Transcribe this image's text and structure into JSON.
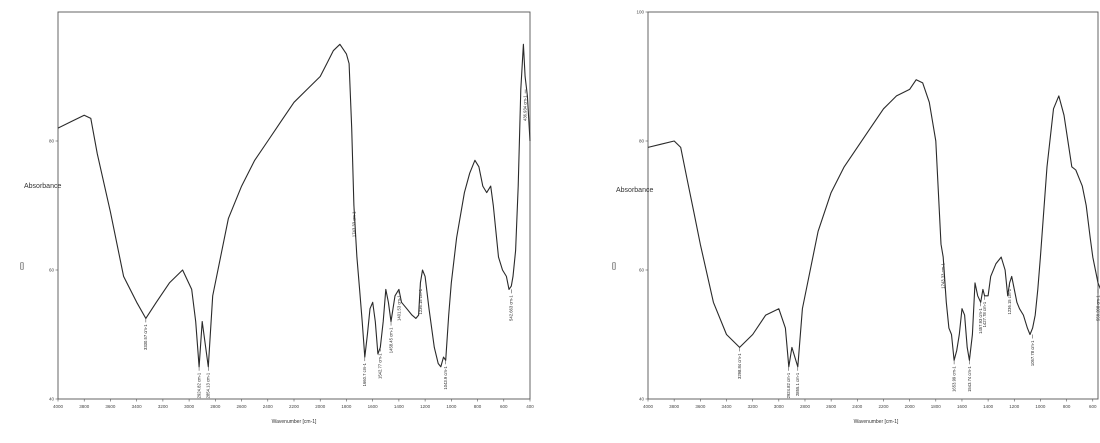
{
  "chart_data": [
    {
      "type": "line",
      "xlabel": "Wavenumber [cm-1]",
      "ylabel": "Absorbance",
      "ylabel_unit": "[]",
      "xlim": [
        4000,
        400
      ],
      "ylim": [
        40,
        100
      ],
      "x_ticks": [
        "4000",
        "3800",
        "3600",
        "3400",
        "3200",
        "3000",
        "2800",
        "2600",
        "2400",
        "2200",
        "2000",
        "1800",
        "1600",
        "1400",
        "1200",
        "1000",
        "800",
        "600",
        "400"
      ],
      "y_ticks": [
        {
          "value": 40,
          "label": "40"
        },
        {
          "value": 60,
          "label": "60"
        },
        {
          "value": 80,
          "label": "80"
        }
      ],
      "series": [
        {
          "x": [
            4000,
            3900,
            3800,
            3750,
            3700,
            3600,
            3500,
            3400,
            3330,
            3250,
            3150,
            3050,
            2980,
            2950,
            2924,
            2900,
            2854,
            2820,
            2700,
            2600,
            2500,
            2400,
            2300,
            2200,
            2100,
            2000,
            1950,
            1900,
            1850,
            1800,
            1780,
            1760,
            1743,
            1720,
            1700,
            1680,
            1660,
            1640,
            1620,
            1600,
            1580,
            1560,
            1542,
            1520,
            1500,
            1480,
            1460,
            1430,
            1400,
            1380,
            1340,
            1300,
            1270,
            1250,
            1236,
            1220,
            1200,
            1170,
            1130,
            1100,
            1080,
            1060,
            1043,
            1020,
            1000,
            960,
            900,
            860,
            820,
            790,
            760,
            730,
            700,
            680,
            660,
            640,
            610,
            580,
            560,
            543,
            530,
            510,
            490,
            470,
            450,
            437,
            420,
            400
          ],
          "y": [
            82,
            83,
            84,
            83.5,
            78,
            69,
            59,
            55,
            52.5,
            55,
            58,
            60,
            57,
            52,
            45,
            52,
            45,
            56,
            68,
            73,
            77,
            80,
            83,
            86,
            88,
            90,
            92,
            94,
            95,
            93.5,
            92,
            82,
            70,
            62,
            57,
            52,
            46.5,
            50,
            54,
            55,
            52,
            47,
            48,
            52,
            57,
            55,
            52,
            56,
            57,
            55,
            54,
            53,
            52.5,
            53,
            58,
            60,
            59,
            54,
            48,
            45.5,
            45,
            46.5,
            46,
            53,
            58,
            65,
            72,
            75,
            77,
            76,
            73,
            72,
            73,
            70,
            66,
            62,
            60,
            59,
            57,
            57.5,
            59,
            63,
            73,
            88,
            95,
            90,
            87,
            80
          ],
          "annotations": [
            {
              "x": 3330,
              "y": 52.5,
              "label": "3330.57 cm-1"
            },
            {
              "x": 2924,
              "y": 45,
              "label": "2924.82 cm-1"
            },
            {
              "x": 2854,
              "y": 45,
              "label": "2854.13 cm-1"
            },
            {
              "x": 1743,
              "y": 70,
              "label": "1743.33 cm-1"
            },
            {
              "x": 1660,
              "y": 46.5,
              "label": "1660.7 cm-1"
            },
            {
              "x": 1542,
              "y": 48,
              "label": "1542.77 cm-1"
            },
            {
              "x": 1460,
              "y": 52,
              "label": "1458.45 cm-1"
            },
            {
              "x": 1400,
              "y": 57,
              "label": "1401.53 cm-1"
            },
            {
              "x": 1236,
              "y": 58,
              "label": "1236.15 cm-1"
            },
            {
              "x": 1043,
              "y": 46,
              "label": "1043.9 cm-1"
            },
            {
              "x": 543,
              "y": 57,
              "label": "542.663 cm-1"
            },
            {
              "x": 437,
              "y": 88,
              "label": "436.934 cm-1"
            }
          ]
        }
      ]
    },
    {
      "type": "line",
      "xlabel": "Wavenumber [cm-1]",
      "ylabel": "Absorbance",
      "ylabel_unit": "[]",
      "xlim": [
        4000,
        400
      ],
      "ylim": [
        40,
        100
      ],
      "x_ticks": [
        "4000",
        "3800",
        "3600",
        "3400",
        "3200",
        "3000",
        "2800",
        "2600",
        "2400",
        "2200",
        "2000",
        "1800",
        "1600",
        "1400",
        "1200",
        "1000",
        "800",
        "600"
      ],
      "y_ticks": [
        {
          "value": 40,
          "label": "40"
        },
        {
          "value": 60,
          "label": "60"
        },
        {
          "value": 80,
          "label": "80"
        },
        {
          "value": 100,
          "label": "100"
        }
      ],
      "series": [
        {
          "x": [
            4000,
            3900,
            3800,
            3750,
            3700,
            3650,
            3600,
            3500,
            3400,
            3300,
            3200,
            3100,
            3000,
            2950,
            2924,
            2900,
            2855,
            2820,
            2700,
            2600,
            2500,
            2400,
            2300,
            2200,
            2100,
            2000,
            1950,
            1900,
            1850,
            1800,
            1780,
            1760,
            1743,
            1720,
            1700,
            1680,
            1660,
            1640,
            1620,
            1600,
            1580,
            1560,
            1543,
            1520,
            1500,
            1480,
            1457,
            1440,
            1427,
            1400,
            1380,
            1340,
            1300,
            1270,
            1250,
            1236,
            1220,
            1200,
            1180,
            1160,
            1130,
            1100,
            1080,
            1060,
            1040,
            1020,
            1000,
            950,
            900,
            860,
            820,
            790,
            760,
            730,
            700,
            680,
            650,
            620,
            600,
            580,
            560,
            540,
            520,
            500
          ],
          "y": [
            79,
            79.5,
            80,
            79,
            74,
            69,
            64,
            55,
            50,
            48,
            50,
            53,
            54,
            51,
            45,
            48,
            45,
            54,
            66,
            72,
            76,
            79,
            82,
            85,
            87,
            88,
            89.5,
            89,
            86,
            80,
            72,
            64,
            62,
            55,
            51,
            50,
            46,
            47.5,
            50,
            54,
            53,
            48,
            46,
            50,
            58,
            56,
            55,
            57,
            56,
            56,
            59,
            61,
            62,
            60,
            56,
            58,
            59,
            57,
            55,
            54,
            53,
            51,
            50,
            51,
            53,
            57,
            62,
            76,
            85,
            87,
            84,
            80,
            76,
            75.5,
            74,
            73,
            70,
            65,
            62,
            60,
            58,
            57,
            57.5,
            58
          ],
          "annotations": [
            {
              "x": 3300,
              "y": 48,
              "label": "3298.84 cm-1"
            },
            {
              "x": 2924,
              "y": 45,
              "label": "2924.82 cm-1"
            },
            {
              "x": 2855,
              "y": 45,
              "label": "2855.1 cm-1"
            },
            {
              "x": 1743,
              "y": 62,
              "label": "1743.33 cm-1"
            },
            {
              "x": 1660,
              "y": 46,
              "label": "1653.99 cm-1"
            },
            {
              "x": 1543,
              "y": 46,
              "label": "1543.74 cm-1"
            },
            {
              "x": 1457,
              "y": 55,
              "label": "1457.93 cm-1"
            },
            {
              "x": 1427,
              "y": 56,
              "label": "1427.78 cm-1"
            },
            {
              "x": 1236,
              "y": 58,
              "label": "1236.15 cm-1"
            },
            {
              "x": 1060,
              "y": 50,
              "label": "1057.78 cm-1"
            },
            {
              "x": 560,
              "y": 57,
              "label": "559.208 cm-1"
            }
          ]
        }
      ]
    }
  ]
}
